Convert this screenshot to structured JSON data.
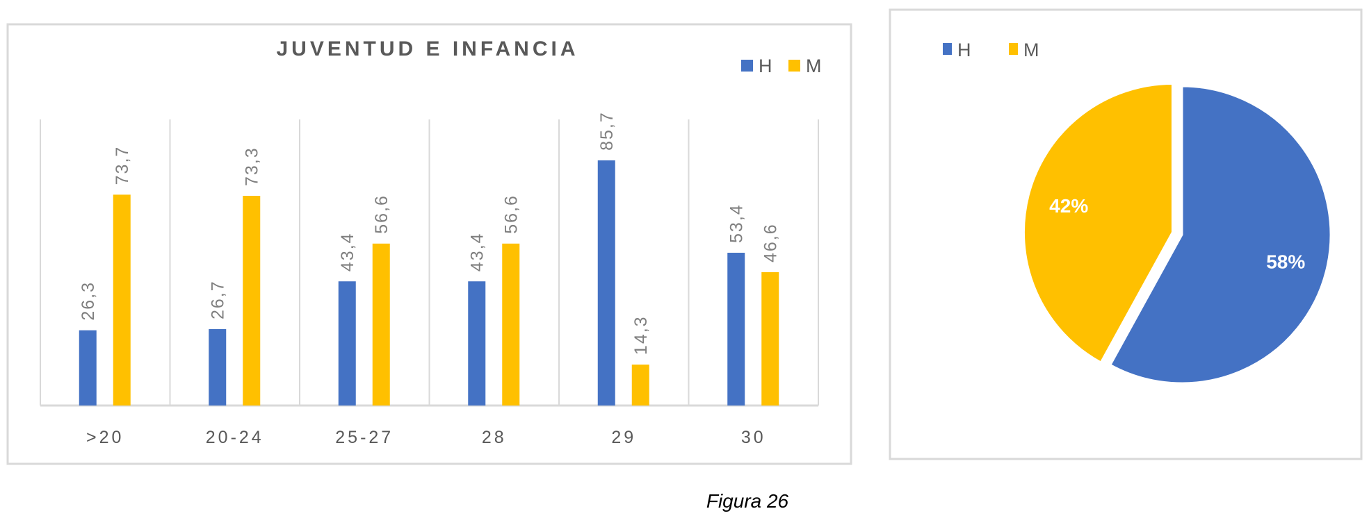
{
  "chart_data": [
    {
      "type": "bar",
      "title": "JUVENTUD E INFANCIA",
      "categories": [
        ">20",
        "20-24",
        "25-27",
        "28",
        "29",
        "30"
      ],
      "series": [
        {
          "name": "H",
          "color": "#4472C4",
          "values": [
            26.3,
            26.7,
            43.4,
            43.4,
            85.7,
            53.4
          ],
          "labels": [
            "26,3",
            "26,7",
            "43,4",
            "43,4",
            "85,7",
            "53,4"
          ]
        },
        {
          "name": "M",
          "color": "#FFC000",
          "values": [
            73.7,
            73.3,
            56.6,
            56.6,
            14.3,
            46.6
          ],
          "labels": [
            "73,7",
            "73,3",
            "56,6",
            "56,6",
            "14,3",
            "46,6"
          ]
        }
      ],
      "ylim": [
        0,
        100
      ],
      "legend": "top-right",
      "grid": "vertical category separators"
    },
    {
      "type": "pie",
      "slices": [
        {
          "name": "H",
          "value": 58,
          "label": "58%",
          "color": "#4472C4"
        },
        {
          "name": "M",
          "value": 42,
          "label": "42%",
          "color": "#FFC000",
          "exploded": true
        }
      ],
      "legend": "top-left"
    }
  ],
  "caption": "Figura 26"
}
